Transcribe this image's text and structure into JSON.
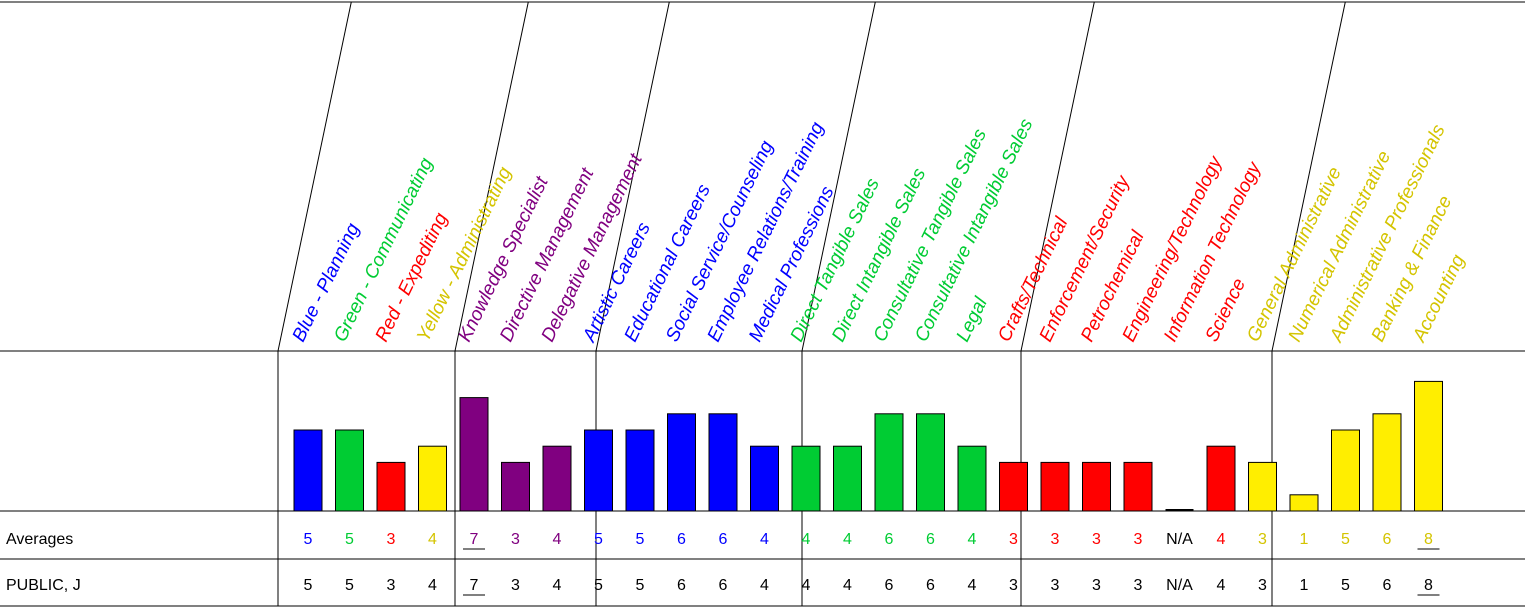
{
  "chart_data": {
    "type": "bar",
    "ylim": [
      0,
      10
    ],
    "row_labels": {
      "averages": "Averages",
      "person": "PUBLIC, J"
    },
    "groups": [
      {
        "name": "colors",
        "color": "#0000ff",
        "categories": [
          {
            "label": "Blue - Planning",
            "color": "#0000ff",
            "average": "5",
            "person": "5",
            "value": 5,
            "underline": false
          },
          {
            "label": "Green - Communicating",
            "color": "#00cc33",
            "average": "5",
            "person": "5",
            "value": 5,
            "underline": false
          },
          {
            "label": "Red - Expediting",
            "color": "#ff0000",
            "average": "3",
            "person": "3",
            "value": 3,
            "underline": false
          },
          {
            "label": "Yellow - Administrating",
            "color": "#d4c400",
            "bar_color": "#ffee00",
            "average": "4",
            "person": "4",
            "value": 4,
            "underline": false
          }
        ]
      },
      {
        "name": "management",
        "color": "#800080",
        "categories": [
          {
            "label": "Knowledge Specialist",
            "color": "#800080",
            "average": "7",
            "person": "7",
            "value": 7,
            "underline": true
          },
          {
            "label": "Directive Management",
            "color": "#800080",
            "average": "3",
            "person": "3",
            "value": 3,
            "underline": false
          },
          {
            "label": "Delegative Management",
            "color": "#800080",
            "average": "4",
            "person": "4",
            "value": 4,
            "underline": false
          }
        ]
      },
      {
        "name": "people",
        "color": "#0000ff",
        "categories": [
          {
            "label": "Artistic Careers",
            "color": "#0000ff",
            "average": "5",
            "person": "5",
            "value": 5,
            "underline": false
          },
          {
            "label": "Educational Careers",
            "color": "#0000ff",
            "average": "5",
            "person": "5",
            "value": 5,
            "underline": false
          },
          {
            "label": "Social Service/Counseling",
            "color": "#0000ff",
            "average": "6",
            "person": "6",
            "value": 6,
            "underline": false
          },
          {
            "label": "Employee Relations/Training",
            "color": "#0000ff",
            "average": "6",
            "person": "6",
            "value": 6,
            "underline": false
          },
          {
            "label": "Medical Professions",
            "color": "#0000ff",
            "average": "4",
            "person": "4",
            "value": 4,
            "underline": false
          }
        ]
      },
      {
        "name": "sales",
        "color": "#00cc33",
        "categories": [
          {
            "label": "Direct Tangible Sales",
            "color": "#00cc33",
            "average": "4",
            "person": "4",
            "value": 4,
            "underline": false
          },
          {
            "label": "Direct Intangible Sales",
            "color": "#00cc33",
            "average": "4",
            "person": "4",
            "value": 4,
            "underline": false
          },
          {
            "label": "Consultative Tangible Sales",
            "color": "#00cc33",
            "average": "6",
            "person": "6",
            "value": 6,
            "underline": false
          },
          {
            "label": "Consultative Intangible Sales",
            "color": "#00cc33",
            "average": "6",
            "person": "6",
            "value": 6,
            "underline": false
          },
          {
            "label": "Legal",
            "color": "#00cc33",
            "average": "4",
            "person": "4",
            "value": 4,
            "underline": false
          }
        ]
      },
      {
        "name": "technical",
        "color": "#ff0000",
        "categories": [
          {
            "label": "Crafts/Technical",
            "color": "#ff0000",
            "average": "3",
            "person": "3",
            "value": 3,
            "underline": false
          },
          {
            "label": "Enforcement/Security",
            "color": "#ff0000",
            "average": "3",
            "person": "3",
            "value": 3,
            "underline": false
          },
          {
            "label": "Petrochemical",
            "color": "#ff0000",
            "average": "3",
            "person": "3",
            "value": 3,
            "underline": false
          },
          {
            "label": "Engineering/Technology",
            "color": "#ff0000",
            "average": "3",
            "person": "3",
            "value": 3,
            "underline": false
          },
          {
            "label": "Information Technology",
            "color": "#ff0000",
            "average": "N/A",
            "person": "N/A",
            "value": 0,
            "underline": false,
            "avg_color": "#000000"
          },
          {
            "label": "Science",
            "color": "#ff0000",
            "average": "4",
            "person": "4",
            "value": 4,
            "underline": false
          }
        ]
      },
      {
        "name": "administrative",
        "color": "#d4c400",
        "categories": [
          {
            "label": "General Administrative",
            "color": "#d4c400",
            "bar_color": "#ffee00",
            "average": "3",
            "person": "3",
            "value": 3,
            "underline": false
          },
          {
            "label": "Numerical Administrative",
            "color": "#d4c400",
            "bar_color": "#ffee00",
            "average": "1",
            "person": "1",
            "value": 1,
            "underline": false
          },
          {
            "label": "Administrative Professionals",
            "color": "#d4c400",
            "bar_color": "#ffee00",
            "average": "5",
            "person": "5",
            "value": 5,
            "underline": false
          },
          {
            "label": "Banking & Finance",
            "color": "#d4c400",
            "bar_color": "#ffee00",
            "average": "6",
            "person": "6",
            "value": 6,
            "underline": false
          },
          {
            "label": "Accounting",
            "color": "#d4c400",
            "bar_color": "#ffee00",
            "average": "8",
            "person": "8",
            "value": 8,
            "underline": true
          }
        ]
      }
    ]
  }
}
